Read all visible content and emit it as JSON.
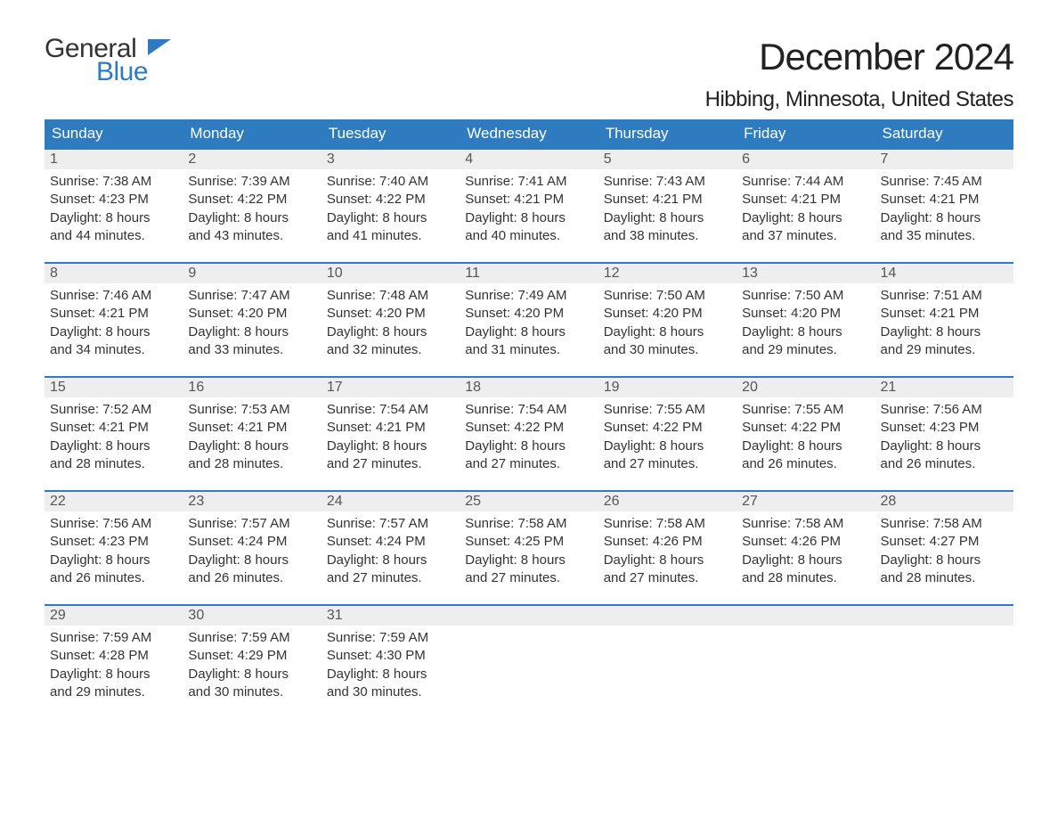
{
  "logo": {
    "line1": "General",
    "line2": "Blue"
  },
  "title": "December 2024",
  "location": "Hibbing, Minnesota, United States",
  "colors": {
    "header_bg": "#2f7bbf",
    "header_text": "#ffffff",
    "daynum_bg": "#eeeeee",
    "border": "#2f7bbf",
    "body_text": "#333333",
    "page_bg": "#ffffff"
  },
  "typography": {
    "title_fontsize": 42,
    "location_fontsize": 24,
    "weekday_fontsize": 17,
    "body_fontsize": 15
  },
  "weekdays": [
    "Sunday",
    "Monday",
    "Tuesday",
    "Wednesday",
    "Thursday",
    "Friday",
    "Saturday"
  ],
  "weeks": [
    [
      {
        "n": "1",
        "sunrise": "Sunrise: 7:38 AM",
        "sunset": "Sunset: 4:23 PM",
        "d1": "Daylight: 8 hours",
        "d2": "and 44 minutes."
      },
      {
        "n": "2",
        "sunrise": "Sunrise: 7:39 AM",
        "sunset": "Sunset: 4:22 PM",
        "d1": "Daylight: 8 hours",
        "d2": "and 43 minutes."
      },
      {
        "n": "3",
        "sunrise": "Sunrise: 7:40 AM",
        "sunset": "Sunset: 4:22 PM",
        "d1": "Daylight: 8 hours",
        "d2": "and 41 minutes."
      },
      {
        "n": "4",
        "sunrise": "Sunrise: 7:41 AM",
        "sunset": "Sunset: 4:21 PM",
        "d1": "Daylight: 8 hours",
        "d2": "and 40 minutes."
      },
      {
        "n": "5",
        "sunrise": "Sunrise: 7:43 AM",
        "sunset": "Sunset: 4:21 PM",
        "d1": "Daylight: 8 hours",
        "d2": "and 38 minutes."
      },
      {
        "n": "6",
        "sunrise": "Sunrise: 7:44 AM",
        "sunset": "Sunset: 4:21 PM",
        "d1": "Daylight: 8 hours",
        "d2": "and 37 minutes."
      },
      {
        "n": "7",
        "sunrise": "Sunrise: 7:45 AM",
        "sunset": "Sunset: 4:21 PM",
        "d1": "Daylight: 8 hours",
        "d2": "and 35 minutes."
      }
    ],
    [
      {
        "n": "8",
        "sunrise": "Sunrise: 7:46 AM",
        "sunset": "Sunset: 4:21 PM",
        "d1": "Daylight: 8 hours",
        "d2": "and 34 minutes."
      },
      {
        "n": "9",
        "sunrise": "Sunrise: 7:47 AM",
        "sunset": "Sunset: 4:20 PM",
        "d1": "Daylight: 8 hours",
        "d2": "and 33 minutes."
      },
      {
        "n": "10",
        "sunrise": "Sunrise: 7:48 AM",
        "sunset": "Sunset: 4:20 PM",
        "d1": "Daylight: 8 hours",
        "d2": "and 32 minutes."
      },
      {
        "n": "11",
        "sunrise": "Sunrise: 7:49 AM",
        "sunset": "Sunset: 4:20 PM",
        "d1": "Daylight: 8 hours",
        "d2": "and 31 minutes."
      },
      {
        "n": "12",
        "sunrise": "Sunrise: 7:50 AM",
        "sunset": "Sunset: 4:20 PM",
        "d1": "Daylight: 8 hours",
        "d2": "and 30 minutes."
      },
      {
        "n": "13",
        "sunrise": "Sunrise: 7:50 AM",
        "sunset": "Sunset: 4:20 PM",
        "d1": "Daylight: 8 hours",
        "d2": "and 29 minutes."
      },
      {
        "n": "14",
        "sunrise": "Sunrise: 7:51 AM",
        "sunset": "Sunset: 4:21 PM",
        "d1": "Daylight: 8 hours",
        "d2": "and 29 minutes."
      }
    ],
    [
      {
        "n": "15",
        "sunrise": "Sunrise: 7:52 AM",
        "sunset": "Sunset: 4:21 PM",
        "d1": "Daylight: 8 hours",
        "d2": "and 28 minutes."
      },
      {
        "n": "16",
        "sunrise": "Sunrise: 7:53 AM",
        "sunset": "Sunset: 4:21 PM",
        "d1": "Daylight: 8 hours",
        "d2": "and 28 minutes."
      },
      {
        "n": "17",
        "sunrise": "Sunrise: 7:54 AM",
        "sunset": "Sunset: 4:21 PM",
        "d1": "Daylight: 8 hours",
        "d2": "and 27 minutes."
      },
      {
        "n": "18",
        "sunrise": "Sunrise: 7:54 AM",
        "sunset": "Sunset: 4:22 PM",
        "d1": "Daylight: 8 hours",
        "d2": "and 27 minutes."
      },
      {
        "n": "19",
        "sunrise": "Sunrise: 7:55 AM",
        "sunset": "Sunset: 4:22 PM",
        "d1": "Daylight: 8 hours",
        "d2": "and 27 minutes."
      },
      {
        "n": "20",
        "sunrise": "Sunrise: 7:55 AM",
        "sunset": "Sunset: 4:22 PM",
        "d1": "Daylight: 8 hours",
        "d2": "and 26 minutes."
      },
      {
        "n": "21",
        "sunrise": "Sunrise: 7:56 AM",
        "sunset": "Sunset: 4:23 PM",
        "d1": "Daylight: 8 hours",
        "d2": "and 26 minutes."
      }
    ],
    [
      {
        "n": "22",
        "sunrise": "Sunrise: 7:56 AM",
        "sunset": "Sunset: 4:23 PM",
        "d1": "Daylight: 8 hours",
        "d2": "and 26 minutes."
      },
      {
        "n": "23",
        "sunrise": "Sunrise: 7:57 AM",
        "sunset": "Sunset: 4:24 PM",
        "d1": "Daylight: 8 hours",
        "d2": "and 26 minutes."
      },
      {
        "n": "24",
        "sunrise": "Sunrise: 7:57 AM",
        "sunset": "Sunset: 4:24 PM",
        "d1": "Daylight: 8 hours",
        "d2": "and 27 minutes."
      },
      {
        "n": "25",
        "sunrise": "Sunrise: 7:58 AM",
        "sunset": "Sunset: 4:25 PM",
        "d1": "Daylight: 8 hours",
        "d2": "and 27 minutes."
      },
      {
        "n": "26",
        "sunrise": "Sunrise: 7:58 AM",
        "sunset": "Sunset: 4:26 PM",
        "d1": "Daylight: 8 hours",
        "d2": "and 27 minutes."
      },
      {
        "n": "27",
        "sunrise": "Sunrise: 7:58 AM",
        "sunset": "Sunset: 4:26 PM",
        "d1": "Daylight: 8 hours",
        "d2": "and 28 minutes."
      },
      {
        "n": "28",
        "sunrise": "Sunrise: 7:58 AM",
        "sunset": "Sunset: 4:27 PM",
        "d1": "Daylight: 8 hours",
        "d2": "and 28 minutes."
      }
    ],
    [
      {
        "n": "29",
        "sunrise": "Sunrise: 7:59 AM",
        "sunset": "Sunset: 4:28 PM",
        "d1": "Daylight: 8 hours",
        "d2": "and 29 minutes."
      },
      {
        "n": "30",
        "sunrise": "Sunrise: 7:59 AM",
        "sunset": "Sunset: 4:29 PM",
        "d1": "Daylight: 8 hours",
        "d2": "and 30 minutes."
      },
      {
        "n": "31",
        "sunrise": "Sunrise: 7:59 AM",
        "sunset": "Sunset: 4:30 PM",
        "d1": "Daylight: 8 hours",
        "d2": "and 30 minutes."
      },
      null,
      null,
      null,
      null
    ]
  ]
}
